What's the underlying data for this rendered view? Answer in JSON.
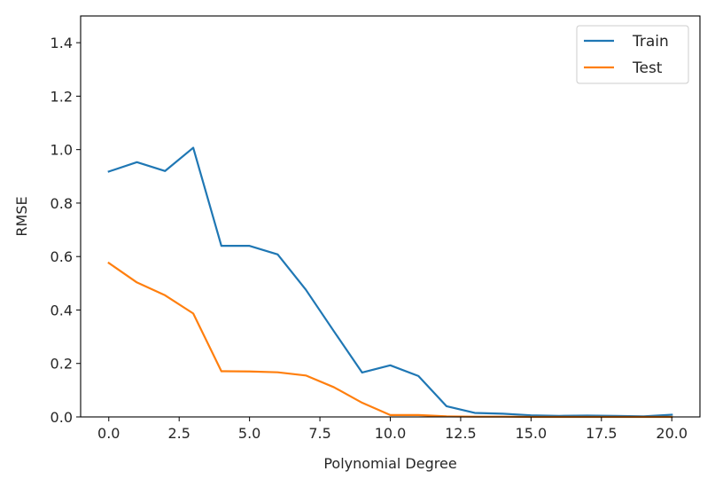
{
  "chart_data": {
    "type": "line",
    "title": "",
    "xlabel": "Polynomial Degree",
    "ylabel": "RMSE",
    "xlim": [
      -1,
      21
    ],
    "ylim": [
      0,
      1.5
    ],
    "xticks": [
      0,
      2.5,
      5,
      7.5,
      10,
      12.5,
      15,
      17.5,
      20
    ],
    "xtick_labels": [
      "0.0",
      "2.5",
      "5.0",
      "7.5",
      "10.0",
      "12.5",
      "15.0",
      "17.5",
      "20.0"
    ],
    "yticks": [
      0,
      0.2,
      0.4,
      0.6,
      0.8,
      1.0,
      1.2,
      1.4
    ],
    "ytick_labels": [
      "0.0",
      "0.2",
      "0.4",
      "0.6",
      "0.8",
      "1.0",
      "1.2",
      "1.4"
    ],
    "grid": false,
    "legend_position": "top-right",
    "x": [
      0,
      1,
      2,
      3,
      4,
      5,
      6,
      7,
      8,
      9,
      10,
      11,
      12,
      13,
      14,
      15,
      16,
      17,
      18,
      19,
      20
    ],
    "series": [
      {
        "name": "Train",
        "color": "#1f77b4",
        "values": [
          0.918,
          0.953,
          0.92,
          1.007,
          0.64,
          0.64,
          0.608,
          0.476,
          0.32,
          0.166,
          0.193,
          0.153,
          0.04,
          0.015,
          0.012,
          0.006,
          0.004,
          0.005,
          0.004,
          0.002,
          0.008
        ]
      },
      {
        "name": "Test",
        "color": "#ff7f0e",
        "values": [
          0.576,
          0.503,
          0.455,
          0.387,
          0.171,
          0.17,
          0.167,
          0.155,
          0.111,
          0.053,
          0.007,
          0.007,
          0.002,
          0.001,
          0.001,
          0.0,
          0.0,
          0.0,
          0.0,
          0.0,
          0.0
        ]
      }
    ]
  }
}
